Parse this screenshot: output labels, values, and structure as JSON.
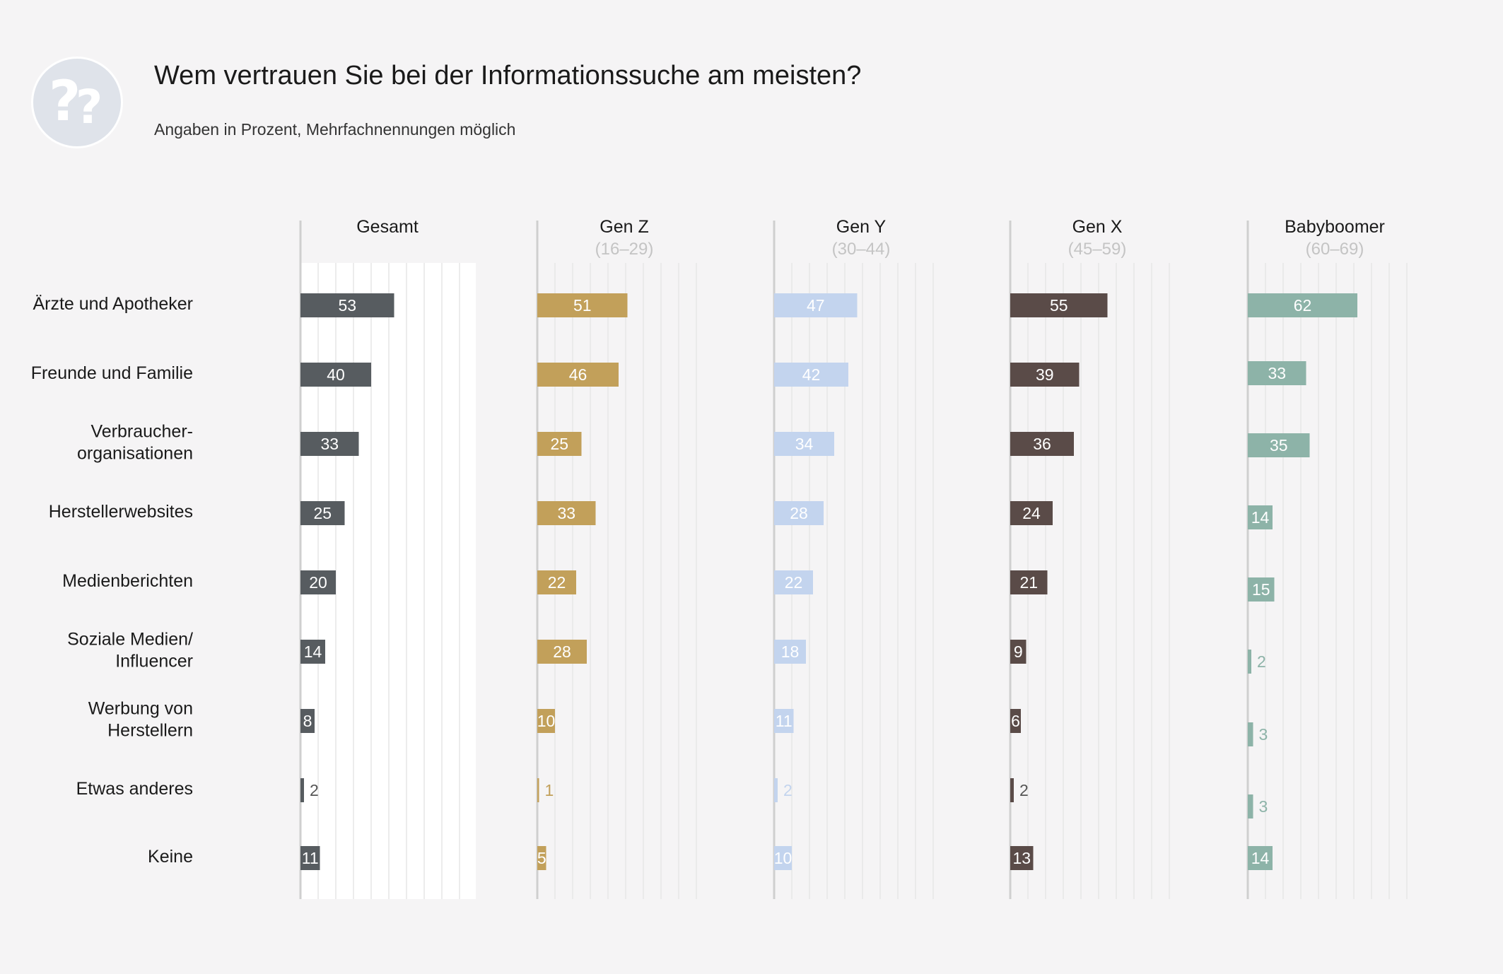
{
  "title": "Wem vertrauen Sie bei der Informationssuche am meisten?",
  "subtitle": "Angaben in Prozent, Mehrfachnennungen möglich",
  "chart_data": {
    "type": "bar",
    "orientation": "horizontal",
    "title": "Wem vertrauen Sie bei der Informationssuche am meisten?",
    "subtitle": "Angaben in Prozent, Mehrfachnennungen möglich",
    "categories": [
      "Ärzte und Apotheker",
      "Freunde und Familie",
      "Verbraucher-\norganisationen",
      "Herstellerwebsites",
      "Medienberichten",
      "Soziale Medien/\nInfluencer",
      "Werbung von\nHerstellern",
      "Etwas anderes",
      "Keine"
    ],
    "xlim": [
      0,
      100
    ],
    "grid": true,
    "series": [
      {
        "name": "Gesamt",
        "sublabel": "",
        "color": "#575c60",
        "values": [
          53,
          40,
          33,
          25,
          20,
          14,
          8,
          2,
          11
        ]
      },
      {
        "name": "Gen Z",
        "sublabel": "(16–29)",
        "color": "#c2a05a",
        "values": [
          51,
          46,
          25,
          33,
          22,
          28,
          10,
          1,
          5
        ]
      },
      {
        "name": "Gen Y",
        "sublabel": "(30–44)",
        "color": "#c3d4ee",
        "values": [
          47,
          42,
          34,
          28,
          22,
          18,
          11,
          2,
          10
        ]
      },
      {
        "name": "Gen X",
        "sublabel": "(45–59)",
        "color": "#5a4b48",
        "values": [
          55,
          39,
          36,
          24,
          21,
          9,
          6,
          2,
          13
        ]
      },
      {
        "name": "Babyboomer",
        "sublabel": "(60–69)",
        "color": "#8db3a8",
        "values": [
          62,
          33,
          35,
          14,
          15,
          2,
          3,
          3,
          14
        ]
      }
    ]
  }
}
